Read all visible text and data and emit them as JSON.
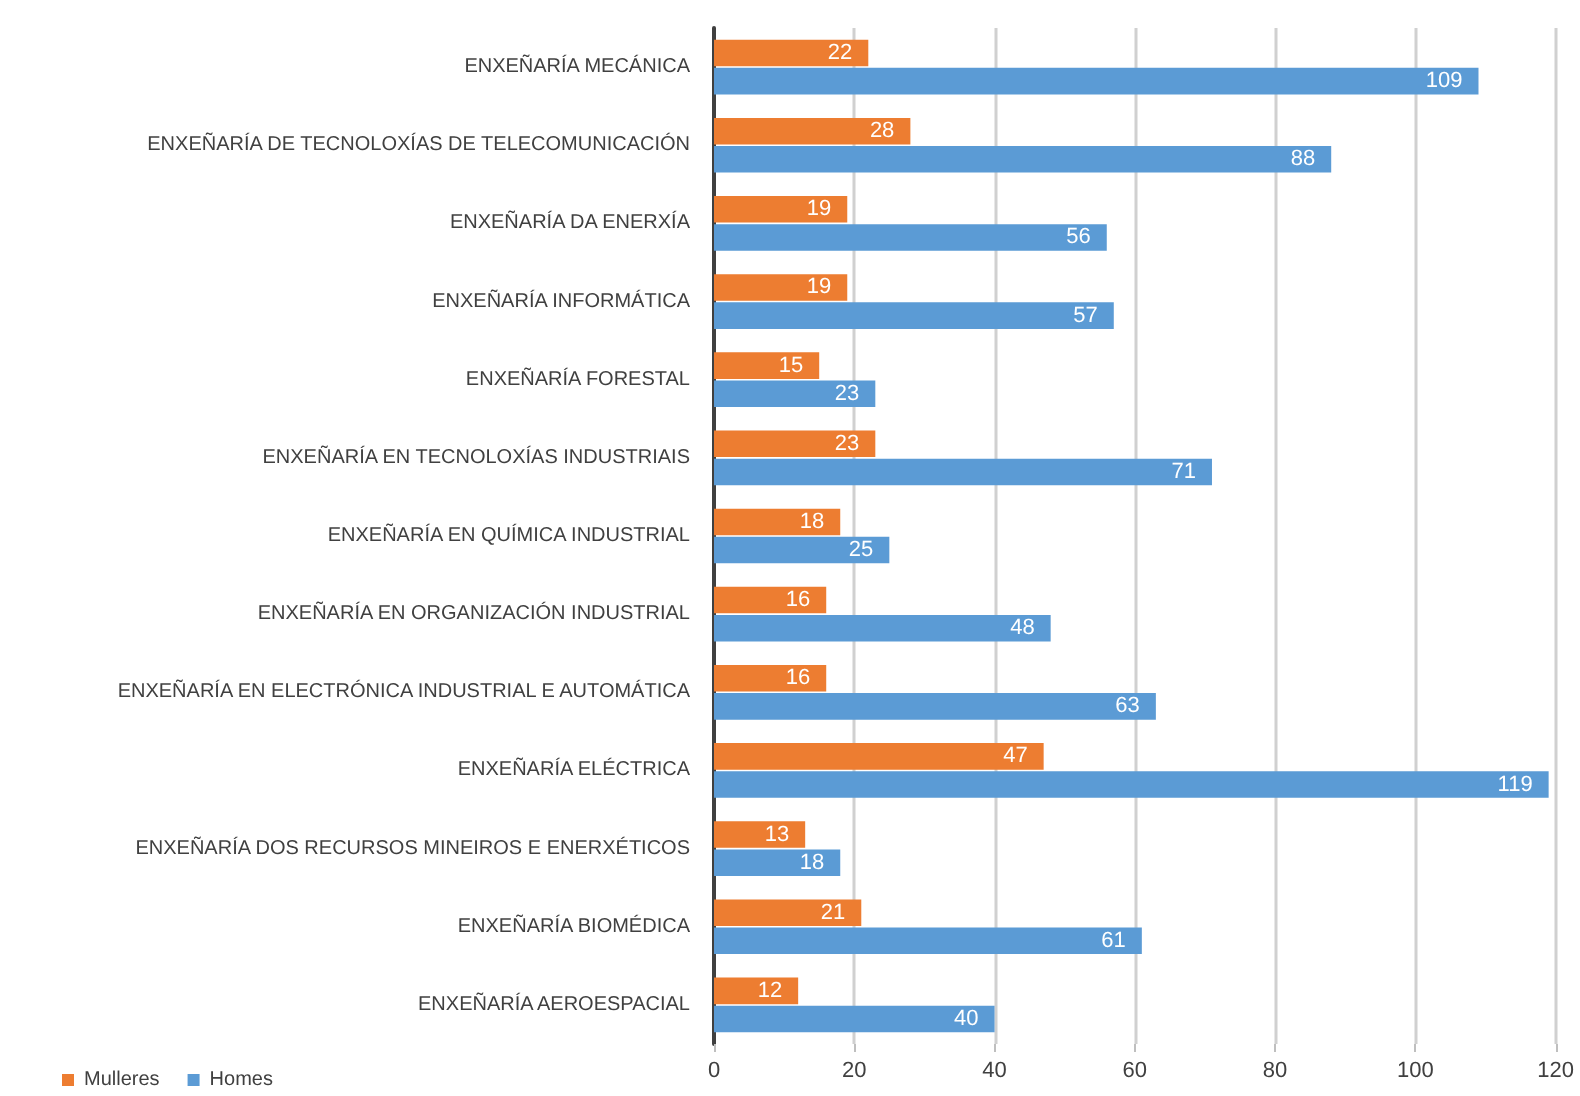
{
  "chart_data": {
    "type": "bar",
    "orientation": "horizontal",
    "categories": [
      "ENXEÑARÍA MECÁNICA",
      "ENXEÑARÍA DE TECNOLOXÍAS DE TELECOMUNICACIÓN",
      "ENXEÑARÍA DA ENERXÍA",
      "ENXEÑARÍA INFORMÁTICA",
      "ENXEÑARÍA FORESTAL",
      "ENXEÑARÍA EN TECNOLOXÍAS INDUSTRIAIS",
      "ENXEÑARÍA EN QUÍMICA INDUSTRIAL",
      "ENXEÑARÍA EN ORGANIZACIÓN INDUSTRIAL",
      "ENXEÑARÍA EN ELECTRÓNICA INDUSTRIAL E AUTOMÁTICA",
      "ENXEÑARÍA ELÉCTRICA",
      "ENXEÑARÍA DOS RECURSOS MINEIROS E ENERXÉTICOS",
      "ENXEÑARÍA BIOMÉDICA",
      "ENXEÑARÍA AEROESPACIAL"
    ],
    "series": [
      {
        "name": "Mulleres",
        "color": "#ed7d31",
        "values": [
          22,
          28,
          19,
          19,
          15,
          23,
          18,
          16,
          16,
          47,
          13,
          21,
          12
        ]
      },
      {
        "name": "Homes",
        "color": "#5b9bd5",
        "values": [
          109,
          88,
          56,
          57,
          23,
          71,
          25,
          48,
          63,
          119,
          18,
          61,
          40
        ]
      }
    ],
    "xlim": [
      0,
      120
    ],
    "xticks": [
      0,
      20,
      40,
      60,
      80,
      100,
      120
    ],
    "grid": "x",
    "legend": "bottom left",
    "data_labels": true
  }
}
